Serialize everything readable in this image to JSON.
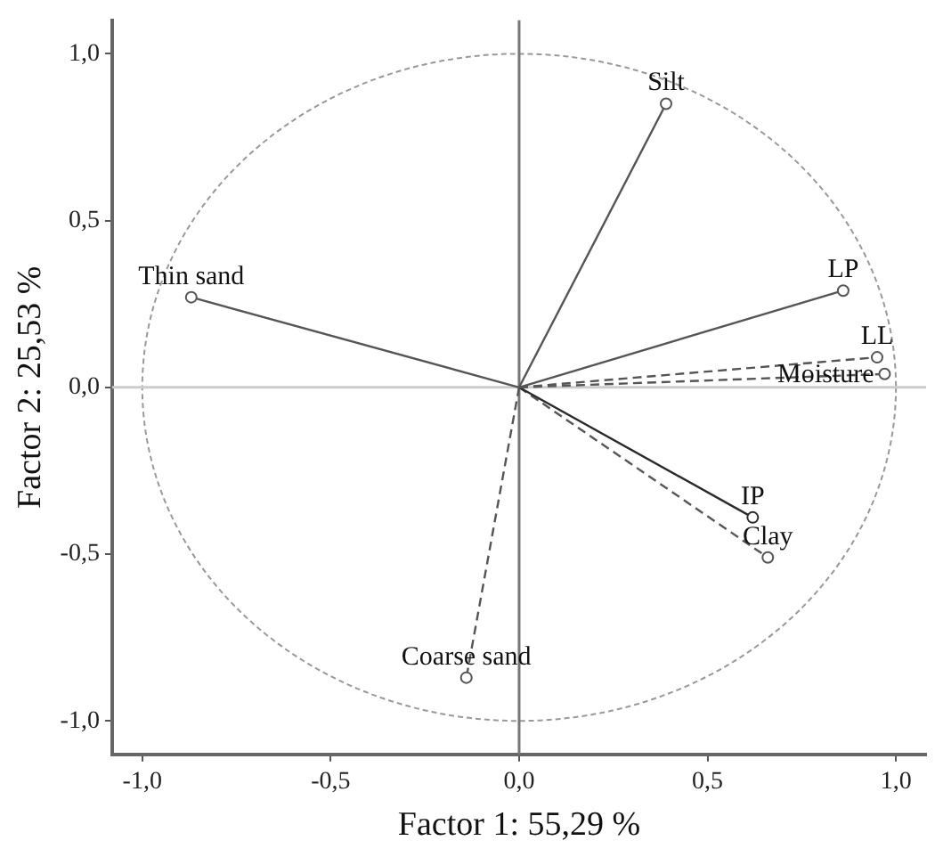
{
  "chart_data": {
    "type": "line",
    "xlabel": "Factor 1: 55,29 %",
    "ylabel": "Factor 2: 25,53 %",
    "xlim": [
      -1.08,
      1.08
    ],
    "ylim": [
      -1.1,
      1.1
    ],
    "xticks": [
      {
        "value": -1,
        "label": "-1,0"
      },
      {
        "value": -0.5,
        "label": "-0,5"
      },
      {
        "value": 0,
        "label": "0,0"
      },
      {
        "value": 0.5,
        "label": "0,5"
      },
      {
        "value": 1,
        "label": "1,0"
      }
    ],
    "yticks": [
      {
        "value": -1,
        "label": "-1,0"
      },
      {
        "value": -0.5,
        "label": "-0,5"
      },
      {
        "value": 0,
        "label": "0,0"
      },
      {
        "value": 0.5,
        "label": "0,5"
      },
      {
        "value": 1,
        "label": "1,0"
      }
    ],
    "grid": false,
    "legend": false,
    "marker": "circle",
    "ref_lines": [
      {
        "axis": "x",
        "value": 0,
        "color": "#777777"
      },
      {
        "axis": "y",
        "value": 0,
        "color": "#cccccc"
      }
    ],
    "series": [
      {
        "name": "Silt",
        "x": [
          0,
          0.39
        ],
        "values": [
          0,
          0.85
        ],
        "color": "#555555",
        "line_style": "solid"
      },
      {
        "name": "Thin sand",
        "x": [
          0,
          -0.87
        ],
        "values": [
          0,
          0.27
        ],
        "color": "#555555",
        "line_style": "solid"
      },
      {
        "name": "LP",
        "x": [
          0,
          0.86
        ],
        "values": [
          0,
          0.29
        ],
        "color": "#555555",
        "line_style": "solid"
      },
      {
        "name": "Moisture",
        "x": [
          0,
          0.97
        ],
        "values": [
          0,
          0.04
        ],
        "color": "#555555",
        "line_style": "dashed"
      },
      {
        "name": "LL",
        "x": [
          0,
          0.95
        ],
        "values": [
          0,
          0.09
        ],
        "color": "#555555",
        "line_style": "dashed"
      },
      {
        "name": "IP",
        "x": [
          0,
          0.62
        ],
        "values": [
          0,
          -0.39
        ],
        "color": "#2a2a2a",
        "line_style": "solid"
      },
      {
        "name": "Clay",
        "x": [
          0,
          0.66
        ],
        "values": [
          0,
          -0.51
        ],
        "color": "#555555",
        "line_style": "dashed"
      },
      {
        "name": "Coarse sand",
        "x": [
          0,
          -0.14
        ],
        "values": [
          0,
          -0.87
        ],
        "color": "#555555",
        "line_style": "dashed"
      }
    ]
  }
}
